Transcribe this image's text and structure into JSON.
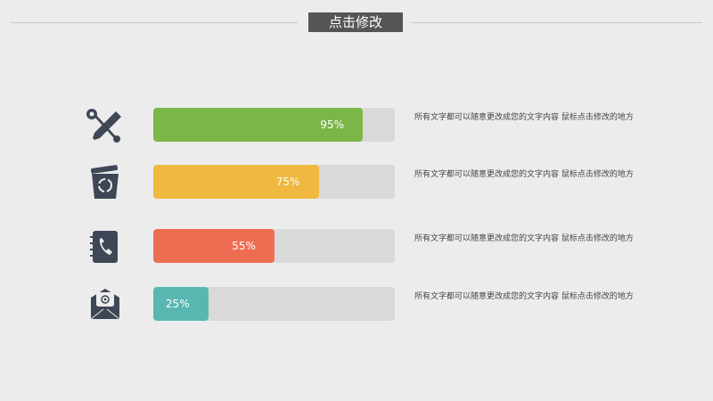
{
  "header": {
    "title": "点击修改"
  },
  "chart_data": {
    "type": "bar",
    "orientation": "horizontal",
    "xlim": [
      0,
      100
    ],
    "items": [
      {
        "icon": "tools-icon",
        "value": 95,
        "label": "95%",
        "color": "#7ab648",
        "description": "所有文字都可以随意更改成您的文字内容 鼠标点击修改的地方"
      },
      {
        "icon": "recycle-bin-icon",
        "value": 75,
        "label": "75%",
        "color": "#efb840",
        "description": "所有文字都可以随意更改成您的文字内容 鼠标点击修改的地方"
      },
      {
        "icon": "phone-book-icon",
        "value": 55,
        "label": "55%",
        "color": "#ee6d52",
        "description": "所有文字都可以随意更改成您的文字内容 鼠标点击修改的地方"
      },
      {
        "icon": "email-icon",
        "value": 25,
        "label": "25%",
        "color": "#58b8b1",
        "description": "所有文字都可以随意更改成您的文字内容 鼠标点击修改的地方"
      }
    ]
  }
}
